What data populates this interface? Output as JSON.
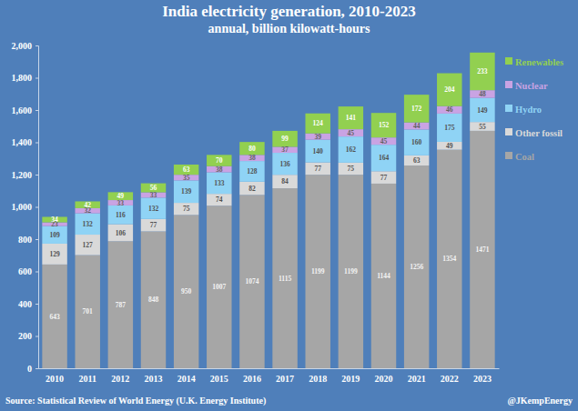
{
  "chart_data": {
    "type": "bar",
    "stacked": true,
    "data_labels": true,
    "grid": false,
    "legend": "right",
    "title": "India electricity generation, 2010-2023",
    "subtitle": "annual, billion kilowatt-hours",
    "annotations": [
      "Source: Statistical Review of World Energy (U.K. Energy Institute)",
      "@JKempEnergy"
    ],
    "categories": [
      "2010",
      "2011",
      "2012",
      "2013",
      "2014",
      "2015",
      "2016",
      "2017",
      "2018",
      "2019",
      "2020",
      "2021",
      "2022",
      "2023"
    ],
    "series": [
      {
        "name": "Coal",
        "color": "#a6a6a6",
        "values": [
          643,
          701,
          787,
          848,
          950,
          1007,
          1074,
          1115,
          1199,
          1199,
          1144,
          1256,
          1354,
          1471
        ]
      },
      {
        "name": "Other fossil",
        "color": "#d9d9d9",
        "values": [
          129,
          127,
          106,
          77,
          75,
          74,
          82,
          84,
          77,
          75,
          77,
          63,
          49,
          55
        ]
      },
      {
        "name": "Hydro",
        "color": "#8fd3f5",
        "values": [
          109,
          132,
          116,
          132,
          139,
          133,
          128,
          136,
          140,
          162,
          164,
          160,
          175,
          149
        ]
      },
      {
        "name": "Nuclear",
        "color": "#c9a3e3",
        "values": [
          23,
          32,
          33,
          33,
          35,
          38,
          38,
          37,
          39,
          45,
          45,
          44,
          46,
          48
        ]
      },
      {
        "name": "Renewables",
        "color": "#92d050",
        "values": [
          34,
          42,
          49,
          56,
          63,
          70,
          80,
          99,
          124,
          141,
          152,
          172,
          204,
          233
        ]
      }
    ],
    "ylim": [
      0,
      2000
    ],
    "yticks": [
      0,
      200,
      400,
      600,
      800,
      {
        "value": 1000,
        "label": "1,000"
      },
      {
        "value": 1200,
        "label": "1,200"
      },
      {
        "value": 1400,
        "label": "1,400"
      },
      {
        "value": 1600,
        "label": "1,600"
      },
      {
        "value": 1800,
        "label": "1,800"
      },
      {
        "value": 2000,
        "label": "2,000"
      }
    ]
  }
}
